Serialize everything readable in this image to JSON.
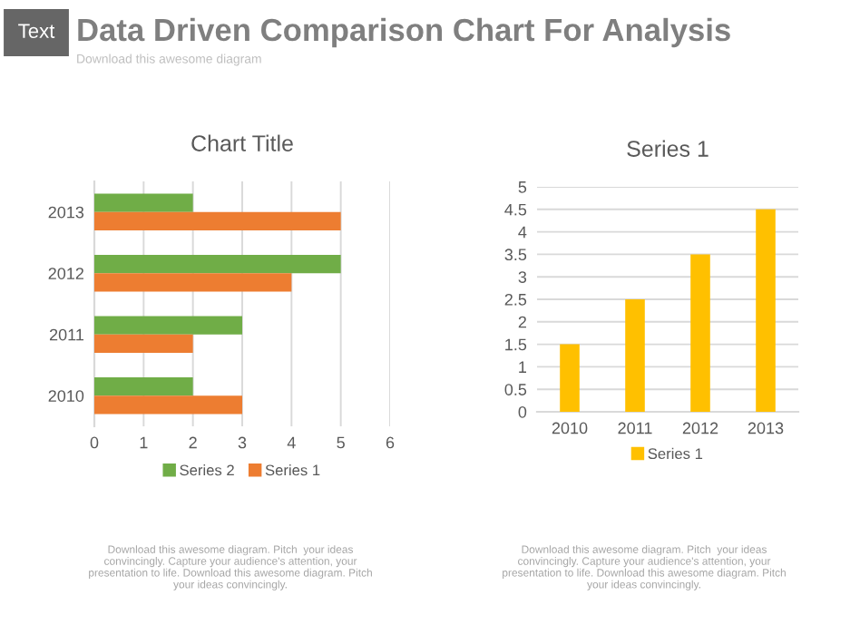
{
  "chart_data": [
    {
      "type": "bar",
      "orientation": "horizontal",
      "title": "Chart Title",
      "categories": [
        "2013",
        "2012",
        "2011",
        "2010"
      ],
      "series": [
        {
          "name": "Series 2",
          "color": "#70ad47",
          "values": [
            2,
            5,
            3,
            2
          ]
        },
        {
          "name": "Series 1",
          "color": "#ed7d31",
          "values": [
            5,
            4,
            2,
            3
          ]
        }
      ],
      "xlim": [
        0,
        6
      ],
      "xticks": [
        0,
        1,
        2,
        3,
        4,
        5,
        6
      ],
      "grid": "x",
      "legend": "bottom",
      "annotations": [
        "Text",
        "Data Driven Comparison Chart For Analysis",
        "Download this awesome diagram",
        "Download this awesome diagram. Pitch  your ideas\nconvincingly. Capture your audience's attention, your\npresentation to life. Download this awesome diagram. Pitch\nyour ideas convincingly."
      ]
    },
    {
      "type": "bar",
      "title": "Series 1",
      "categories": [
        "2010",
        "2011",
        "2012",
        "2013"
      ],
      "series": [
        {
          "name": "Series 1",
          "color": "#ffc000",
          "values": [
            1.5,
            2.5,
            3.5,
            4.5
          ]
        }
      ],
      "ylim": [
        0,
        5
      ],
      "yticks": [
        0,
        0.5,
        1,
        1.5,
        2,
        2.5,
        3,
        3.5,
        4,
        4.5,
        5
      ],
      "grid": "y",
      "legend": "bottom",
      "annotations": [
        "Download this awesome diagram. Pitch  your ideas\nconvincingly. Capture your audience's attention, your\npresentation to life. Download this awesome diagram. Pitch\nyour ideas convincingly."
      ]
    }
  ]
}
